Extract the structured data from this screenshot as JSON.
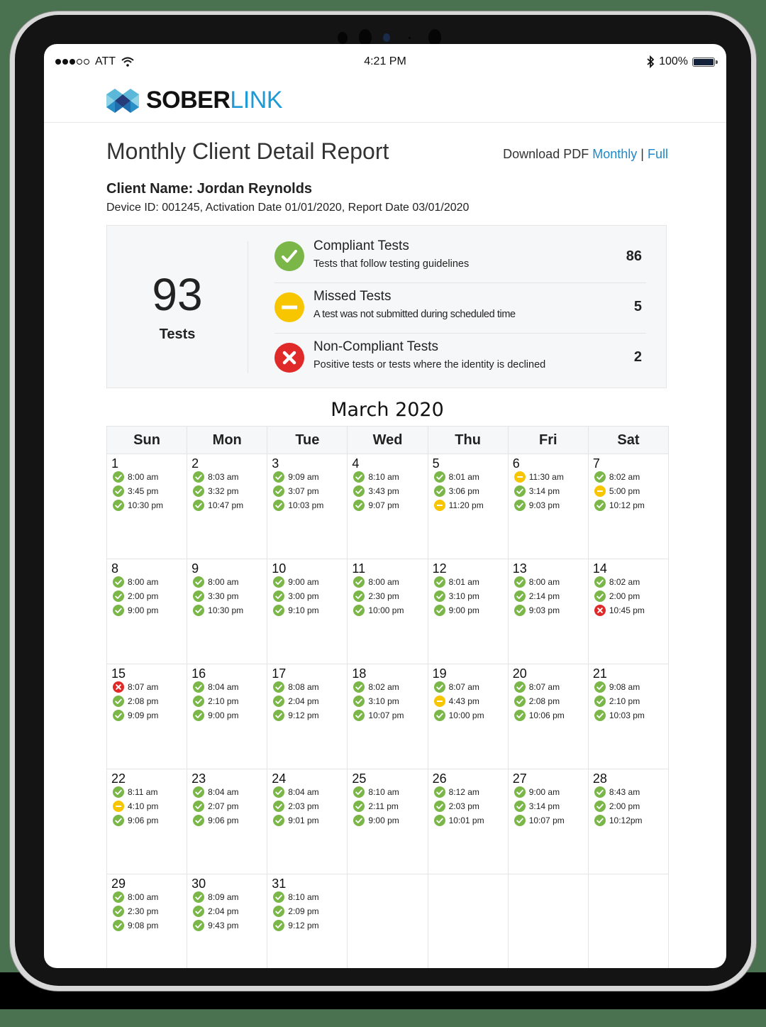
{
  "status_bar": {
    "signal_filled": 3,
    "signal_empty": 2,
    "carrier": "ATT",
    "wifi_icon": "wifi-icon",
    "time": "4:21 PM",
    "bluetooth_icon": "bluetooth-icon",
    "battery_percent": "100%"
  },
  "header": {
    "logo_bold": "SOBER",
    "logo_light": "LINK"
  },
  "report": {
    "title": "Monthly Client Detail Report",
    "download_label": "Download PDF",
    "download_monthly": "Monthly",
    "download_sep": "|",
    "download_full": "Full",
    "client_name": "Client Name: Jordan Reynolds",
    "device_info": "Device ID: 001245, Activation Date 01/01/2020, Report Date 03/01/2020"
  },
  "summary": {
    "total": "93",
    "total_label": "Tests",
    "stats": [
      {
        "type": "compliant",
        "title": "Compliant Tests",
        "desc": "Tests that follow testing guidelines",
        "count": "86"
      },
      {
        "type": "missed",
        "title": "Missed Tests",
        "desc": "A test was not submitted during scheduled time",
        "count": "5"
      },
      {
        "type": "noncompliant",
        "title": "Non-Compliant Tests",
        "desc": "Positive tests or tests where the identity is declined",
        "count": "2"
      }
    ]
  },
  "colors": {
    "compliant": "#7ab648",
    "missed": "#f7c600",
    "noncompliant": "#e02a2a",
    "link": "#1e88c8",
    "brand_blue": "#1e9bd6"
  },
  "calendar": {
    "month": "March 2020",
    "weekdays": [
      "Sun",
      "Mon",
      "Tue",
      "Wed",
      "Thu",
      "Fri",
      "Sat"
    ],
    "weeks": [
      [
        {
          "day": "1",
          "tests": [
            [
              "c",
              "8:00 am"
            ],
            [
              "c",
              "3:45 pm"
            ],
            [
              "c",
              "10:30 pm"
            ]
          ]
        },
        {
          "day": "2",
          "tests": [
            [
              "c",
              "8:03 am"
            ],
            [
              "c",
              "3:32 pm"
            ],
            [
              "c",
              "10:47 pm"
            ]
          ]
        },
        {
          "day": "3",
          "tests": [
            [
              "c",
              "9:09 am"
            ],
            [
              "c",
              "3:07 pm"
            ],
            [
              "c",
              "10:03 pm"
            ]
          ]
        },
        {
          "day": "4",
          "tests": [
            [
              "c",
              "8:10 am"
            ],
            [
              "c",
              "3:43 pm"
            ],
            [
              "c",
              "9:07 pm"
            ]
          ]
        },
        {
          "day": "5",
          "tests": [
            [
              "c",
              "8:01 am"
            ],
            [
              "c",
              "3:06 pm"
            ],
            [
              "m",
              "11:20 pm"
            ]
          ]
        },
        {
          "day": "6",
          "tests": [
            [
              "m",
              "11:30 am"
            ],
            [
              "c",
              "3:14 pm"
            ],
            [
              "c",
              "9:03 pm"
            ]
          ]
        },
        {
          "day": "7",
          "tests": [
            [
              "c",
              "8:02 am"
            ],
            [
              "m",
              "5:00 pm"
            ],
            [
              "c",
              "10:12 pm"
            ]
          ]
        }
      ],
      [
        {
          "day": "8",
          "tests": [
            [
              "c",
              "8:00 am"
            ],
            [
              "c",
              "2:00 pm"
            ],
            [
              "c",
              "9:00 pm"
            ]
          ]
        },
        {
          "day": "9",
          "tests": [
            [
              "c",
              "8:00 am"
            ],
            [
              "c",
              "3:30 pm"
            ],
            [
              "c",
              "10:30 pm"
            ]
          ]
        },
        {
          "day": "10",
          "tests": [
            [
              "c",
              "9:00 am"
            ],
            [
              "c",
              "3:00 pm"
            ],
            [
              "c",
              "9:10 pm"
            ]
          ]
        },
        {
          "day": "11",
          "tests": [
            [
              "c",
              "8:00 am"
            ],
            [
              "c",
              "2:30 pm"
            ],
            [
              "c",
              "10:00 pm"
            ]
          ]
        },
        {
          "day": "12",
          "tests": [
            [
              "c",
              "8:01 am"
            ],
            [
              "c",
              "3:10 pm"
            ],
            [
              "c",
              "9:00 pm"
            ]
          ]
        },
        {
          "day": "13",
          "tests": [
            [
              "c",
              "8:00 am"
            ],
            [
              "c",
              "2:14 pm"
            ],
            [
              "c",
              "9:03 pm"
            ]
          ]
        },
        {
          "day": "14",
          "tests": [
            [
              "c",
              "8:02 am"
            ],
            [
              "c",
              "2:00 pm"
            ],
            [
              "x",
              "10:45 pm"
            ]
          ]
        }
      ],
      [
        {
          "day": "15",
          "tests": [
            [
              "x",
              "8:07 am"
            ],
            [
              "c",
              "2:08 pm"
            ],
            [
              "c",
              "9:09 pm"
            ]
          ]
        },
        {
          "day": "16",
          "tests": [
            [
              "c",
              "8:04 am"
            ],
            [
              "c",
              "2:10 pm"
            ],
            [
              "c",
              "9:00 pm"
            ]
          ]
        },
        {
          "day": "17",
          "tests": [
            [
              "c",
              "8:08 am"
            ],
            [
              "c",
              "2:04 pm"
            ],
            [
              "c",
              "9:12 pm"
            ]
          ]
        },
        {
          "day": "18",
          "tests": [
            [
              "c",
              "8:02 am"
            ],
            [
              "c",
              "3:10 pm"
            ],
            [
              "c",
              "10:07 pm"
            ]
          ]
        },
        {
          "day": "19",
          "tests": [
            [
              "c",
              "8:07 am"
            ],
            [
              "m",
              "4:43 pm"
            ],
            [
              "c",
              "10:00 pm"
            ]
          ]
        },
        {
          "day": "20",
          "tests": [
            [
              "c",
              "8:07 am"
            ],
            [
              "c",
              "2:08 pm"
            ],
            [
              "c",
              "10:06 pm"
            ]
          ]
        },
        {
          "day": "21",
          "tests": [
            [
              "c",
              "9:08 am"
            ],
            [
              "c",
              "2:10 pm"
            ],
            [
              "c",
              "10:03 pm"
            ]
          ]
        }
      ],
      [
        {
          "day": "22",
          "tests": [
            [
              "c",
              "8:11 am"
            ],
            [
              "m",
              "4:10 pm"
            ],
            [
              "c",
              "9:06 pm"
            ]
          ]
        },
        {
          "day": "23",
          "tests": [
            [
              "c",
              "8:04 am"
            ],
            [
              "c",
              "2:07 pm"
            ],
            [
              "c",
              "9:06 pm"
            ]
          ]
        },
        {
          "day": "24",
          "tests": [
            [
              "c",
              "8:04 am"
            ],
            [
              "c",
              "2:03 pm"
            ],
            [
              "c",
              "9:01 pm"
            ]
          ]
        },
        {
          "day": "25",
          "tests": [
            [
              "c",
              "8:10 am"
            ],
            [
              "c",
              "2:11 pm"
            ],
            [
              "c",
              "9:00 pm"
            ]
          ]
        },
        {
          "day": "26",
          "tests": [
            [
              "c",
              "8:12 am"
            ],
            [
              "c",
              "2:03 pm"
            ],
            [
              "c",
              "10:01 pm"
            ]
          ]
        },
        {
          "day": "27",
          "tests": [
            [
              "c",
              "9:00 am"
            ],
            [
              "c",
              "3:14 pm"
            ],
            [
              "c",
              "10:07 pm"
            ]
          ]
        },
        {
          "day": "28",
          "tests": [
            [
              "c",
              "8:43 am"
            ],
            [
              "c",
              "2:00 pm"
            ],
            [
              "c",
              "10:12pm"
            ]
          ]
        }
      ],
      [
        {
          "day": "29",
          "tests": [
            [
              "c",
              "8:00 am"
            ],
            [
              "c",
              "2:30 pm"
            ],
            [
              "c",
              "9:08 pm"
            ]
          ]
        },
        {
          "day": "30",
          "tests": [
            [
              "c",
              "8:09 am"
            ],
            [
              "c",
              "2:04 pm"
            ],
            [
              "c",
              "9:43 pm"
            ]
          ]
        },
        {
          "day": "31",
          "tests": [
            [
              "c",
              "8:10 am"
            ],
            [
              "c",
              "2:09 pm"
            ],
            [
              "c",
              "9:12 pm"
            ]
          ]
        },
        {
          "day": "",
          "tests": []
        },
        {
          "day": "",
          "tests": []
        },
        {
          "day": "",
          "tests": []
        },
        {
          "day": "",
          "tests": []
        }
      ]
    ]
  }
}
